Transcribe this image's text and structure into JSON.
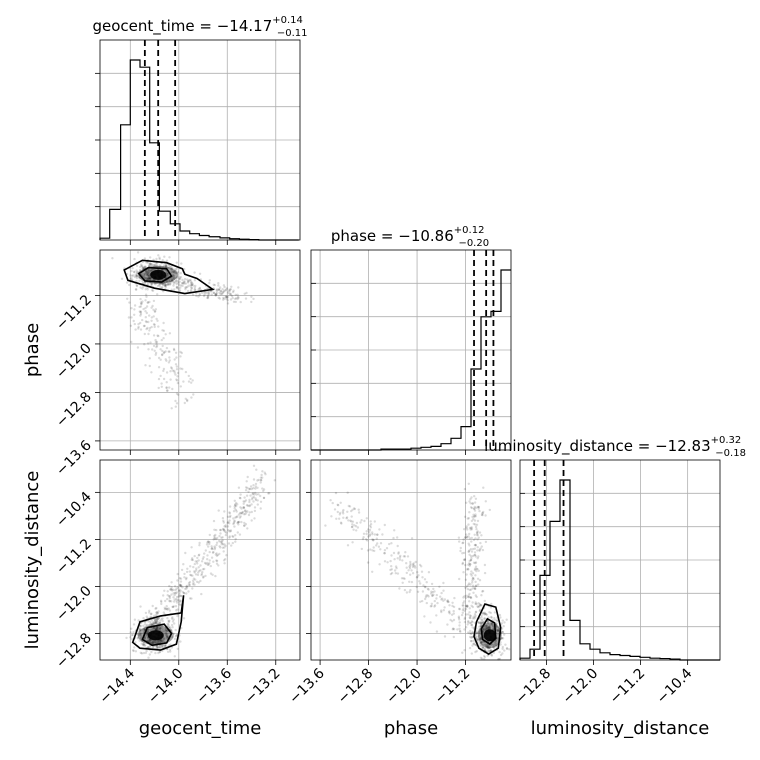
{
  "chart_data": {
    "type": "corner",
    "parameters": [
      "geocent_time",
      "phase",
      "luminosity_distance"
    ],
    "axis_labels": {
      "geocent_time": "geocent_time",
      "phase": "phase",
      "luminosity_distance": "luminosity_distance"
    },
    "ranges": {
      "geocent_time": [
        -14.65,
        -13.0
      ],
      "phase": [
        -13.75,
        -10.45
      ],
      "luminosity_distance": [
        -13.25,
        -9.85
      ]
    },
    "ticks": {
      "geocent_time": [
        -14.4,
        -14.0,
        -13.6,
        -13.2
      ],
      "phase": [
        -13.6,
        -12.8,
        -12.0,
        -11.2
      ],
      "luminosity_distance": [
        -12.8,
        -12.0,
        -11.2,
        -10.4
      ]
    },
    "tick_labels": {
      "geocent_time": [
        "−14.4",
        "−14.0",
        "−13.6",
        "−13.2"
      ],
      "phase": [
        "−13.6",
        "−12.8",
        "−12.0",
        "−11.2"
      ],
      "luminosity_distance": [
        "−12.8",
        "−12.0",
        "−11.2",
        "−10.4"
      ]
    },
    "titles": {
      "geocent_time": {
        "prefix": "geocent_time = −14.17",
        "plus": "+0.14",
        "minus": "−0.11"
      },
      "phase": {
        "prefix": "phase = −10.86",
        "plus": "+0.12",
        "minus": "−0.20"
      },
      "luminosity_distance": {
        "prefix": "luminosity_distance = −12.83",
        "plus": "+0.32",
        "minus": "−0.18"
      }
    },
    "quantiles": {
      "geocent_time": [
        -14.28,
        -14.17,
        -14.03
      ],
      "phase": [
        -11.06,
        -10.86,
        -10.74
      ],
      "luminosity_distance": [
        -13.01,
        -12.83,
        -12.51
      ]
    },
    "histograms": {
      "geocent_time": {
        "edges": [
          -14.65,
          -14.57,
          -14.48,
          -14.4,
          -14.32,
          -14.24,
          -14.16,
          -14.07,
          -13.99,
          -13.91,
          -13.83,
          -13.75,
          -13.66,
          -13.58,
          -13.5,
          -13.42,
          -13.34,
          -13.25,
          -13.17,
          -13.09,
          -13.01
        ],
        "counts": [
          0.01,
          0.17,
          0.64,
          1.0,
          0.96,
          0.54,
          0.16,
          0.09,
          0.05,
          0.035,
          0.025,
          0.018,
          0.012,
          0.007,
          0.004,
          0.002,
          0.0,
          0.0,
          0.0,
          0.0
        ]
      },
      "phase": {
        "edges": [
          -13.75,
          -13.585,
          -13.42,
          -13.255,
          -13.09,
          -12.925,
          -12.76,
          -12.595,
          -12.43,
          -12.265,
          -12.1,
          -11.935,
          -11.77,
          -11.605,
          -11.44,
          -11.275,
          -11.11,
          -10.945,
          -10.78,
          -10.615,
          -10.45
        ],
        "counts": [
          0.0,
          0.0,
          0.0,
          0.0,
          0.0,
          0.0,
          0.0,
          0.005,
          0.005,
          0.005,
          0.01,
          0.015,
          0.02,
          0.035,
          0.065,
          0.13,
          0.45,
          0.74,
          0.77,
          1.0
        ]
      },
      "luminosity_distance": {
        "edges": [
          -13.25,
          -13.08,
          -12.91,
          -12.74,
          -12.57,
          -12.4,
          -12.23,
          -12.06,
          -11.89,
          -11.72,
          -11.55,
          -11.38,
          -11.21,
          -11.04,
          -10.87,
          -10.7,
          -10.53,
          -10.36,
          -10.19,
          -10.02,
          -9.85
        ],
        "counts": [
          0.01,
          0.06,
          0.47,
          0.77,
          1.0,
          0.22,
          0.09,
          0.06,
          0.04,
          0.03,
          0.025,
          0.02,
          0.015,
          0.01,
          0.008,
          0.005,
          0.0,
          0.0,
          0.0,
          0.0
        ]
      }
    },
    "grid": true
  }
}
